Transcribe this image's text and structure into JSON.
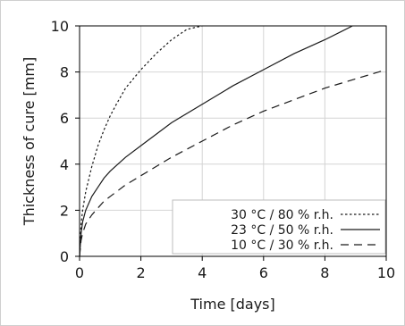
{
  "chart_data": {
    "type": "line",
    "title": "",
    "xlabel": "Time [days]",
    "ylabel": "Thickness of cure [mm]",
    "xlim": [
      0,
      10
    ],
    "ylim": [
      0,
      10
    ],
    "xticks": [
      0,
      2,
      4,
      6,
      8,
      10
    ],
    "yticks": [
      0,
      2,
      4,
      6,
      8,
      10
    ],
    "grid": true,
    "legend_position": "bottom-right",
    "series": [
      {
        "name": "30 °C / 80 % r.h.",
        "style": "dotted",
        "color": "#1a1a1a",
        "x": [
          0,
          0.05,
          0.1,
          0.2,
          0.4,
          0.6,
          0.8,
          1.0,
          1.2,
          1.5,
          2.0,
          2.5,
          3.0,
          3.5,
          4.0
        ],
        "y": [
          0,
          1.4,
          2.0,
          2.8,
          3.9,
          4.8,
          5.5,
          6.1,
          6.6,
          7.3,
          8.1,
          8.8,
          9.4,
          9.85,
          10.0
        ]
      },
      {
        "name": "23 °C / 50 % r.h.",
        "style": "solid",
        "color": "#1a1a1a",
        "x": [
          0,
          0.05,
          0.1,
          0.2,
          0.4,
          0.6,
          0.8,
          1.0,
          1.5,
          2.0,
          3.0,
          4.0,
          5.0,
          6.0,
          7.0,
          8.0,
          8.9
        ],
        "y": [
          0,
          1.0,
          1.5,
          2.0,
          2.6,
          3.0,
          3.4,
          3.7,
          4.3,
          4.8,
          5.8,
          6.6,
          7.4,
          8.1,
          8.8,
          9.4,
          10.0
        ]
      },
      {
        "name": "10 °C / 30 % r.h.",
        "style": "dashed",
        "color": "#1a1a1a",
        "x": [
          0,
          0.05,
          0.1,
          0.2,
          0.4,
          0.6,
          0.8,
          1.0,
          1.5,
          2.0,
          3.0,
          4.0,
          5.0,
          6.0,
          7.0,
          8.0,
          9.0,
          10.0
        ],
        "y": [
          0,
          0.7,
          1.0,
          1.4,
          1.8,
          2.1,
          2.4,
          2.6,
          3.1,
          3.5,
          4.3,
          5.0,
          5.7,
          6.3,
          6.8,
          7.3,
          7.7,
          8.1
        ]
      }
    ]
  }
}
